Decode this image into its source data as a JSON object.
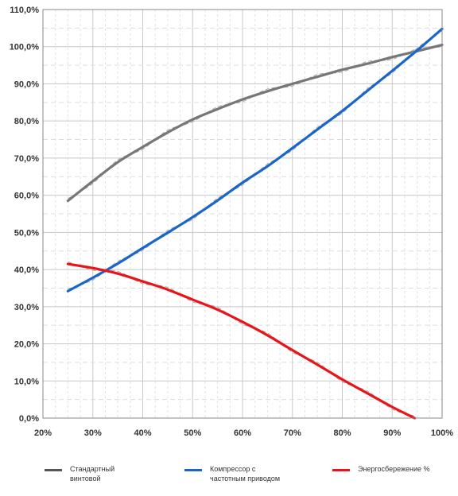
{
  "chart_data": {
    "type": "line",
    "title": "",
    "xlabel": "",
    "ylabel": "",
    "xlim": [
      20,
      100
    ],
    "ylim": [
      0,
      110
    ],
    "grid": true,
    "legend_position": "bottom",
    "x_ticks": [
      "20%",
      "30%",
      "40%",
      "50%",
      "60%",
      "70%",
      "80%",
      "90%",
      "100%"
    ],
    "y_ticks": [
      "0,0%",
      "10,0%",
      "20,0%",
      "30,0%",
      "40,0%",
      "50,0%",
      "60,0%",
      "70,0%",
      "80,0%",
      "90,0%",
      "100,0%",
      "110,0%"
    ],
    "series": [
      {
        "name": "Стандартный винтовой",
        "color": "#777777",
        "x": [
          25,
          30,
          35,
          40,
          45,
          50,
          55,
          60,
          65,
          70,
          75,
          80,
          85,
          90,
          95,
          100
        ],
        "values": [
          58.5,
          63.8,
          68.9,
          73.0,
          76.9,
          80.4,
          83.2,
          85.8,
          88.0,
          90.0,
          91.9,
          93.8,
          95.4,
          97.2,
          98.8,
          100.5
        ]
      },
      {
        "name": "Компрессор с частотным приводом",
        "color": "#1a66c8",
        "x": [
          25,
          30,
          35,
          40,
          45,
          50,
          55,
          60,
          65,
          70,
          75,
          80,
          85,
          90,
          95,
          100
        ],
        "values": [
          34.2,
          37.8,
          41.6,
          45.8,
          49.9,
          54.1,
          58.6,
          63.4,
          67.8,
          72.7,
          77.7,
          82.7,
          88.1,
          93.5,
          99.0,
          104.8
        ]
      },
      {
        "name": "Энергосбережение %",
        "color": "#e8141a",
        "x": [
          25,
          30,
          35,
          40,
          45,
          50,
          55,
          60,
          65,
          70,
          75,
          80,
          85,
          90,
          94.5
        ],
        "values": [
          41.5,
          40.4,
          38.9,
          36.8,
          34.6,
          31.9,
          29.2,
          25.9,
          22.3,
          18.3,
          14.4,
          10.4,
          6.7,
          3.0,
          0.0
        ]
      }
    ]
  },
  "legend": [
    {
      "line1": "Стандартный",
      "line2": "винтовой",
      "color": "#555555"
    },
    {
      "line1": "Компрессор с",
      "line2": "частотным приводом",
      "color": "#1a66c8"
    },
    {
      "line1": "Энергосбережение %",
      "line2": "",
      "color": "#e8141a"
    }
  ]
}
